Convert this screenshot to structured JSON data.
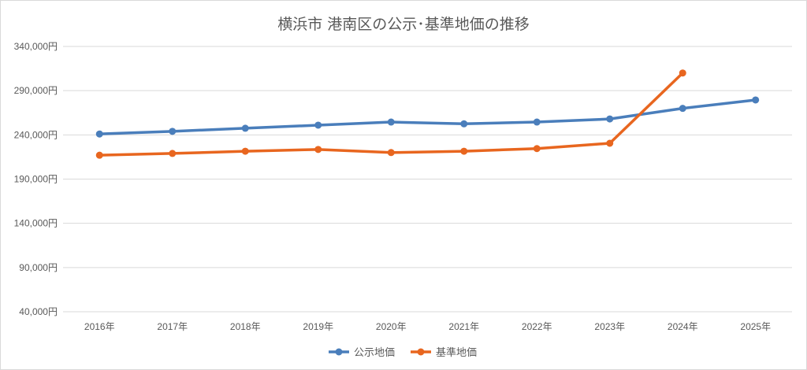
{
  "chart_data": {
    "type": "line",
    "title": "横浜市 港南区の公示･基準地価の推移",
    "categories": [
      "2016年",
      "2017年",
      "2018年",
      "2019年",
      "2020年",
      "2021年",
      "2022年",
      "2023年",
      "2024年",
      "2025年"
    ],
    "y_ticks": [
      "340,000円",
      "290,000円",
      "240,000円",
      "190,000円",
      "140,000円",
      "90,000円",
      "40,000円"
    ],
    "ylim": [
      40000,
      340000
    ],
    "grid": true,
    "legend_position": "bottom",
    "series": [
      {
        "name": "公示地価",
        "color": "#4a7ebb",
        "values": [
          241000,
          244000,
          247500,
          251000,
          254500,
          252500,
          254500,
          258000,
          270000,
          279500
        ]
      },
      {
        "name": "基準地価",
        "color": "#e8661f",
        "values": [
          217000,
          219000,
          221500,
          223500,
          220000,
          221500,
          224500,
          230500,
          310000,
          null
        ]
      }
    ]
  }
}
